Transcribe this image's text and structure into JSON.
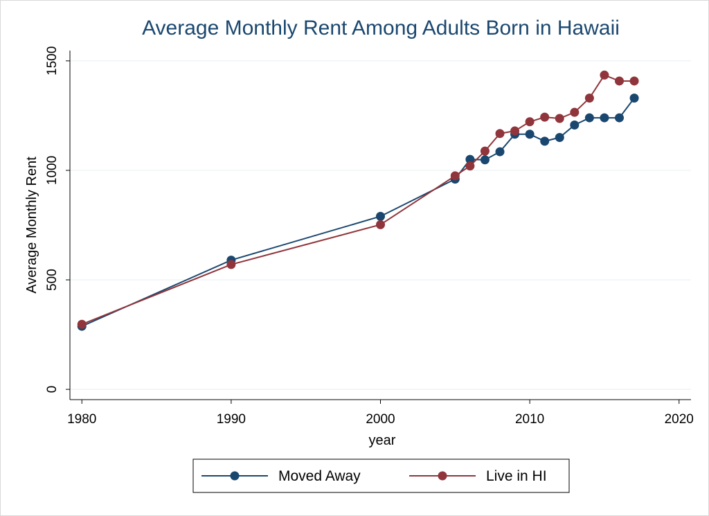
{
  "chart_data": {
    "type": "line",
    "title": "Average Monthly Rent Among Adults Born in Hawaii",
    "x_label": "year",
    "y_label": "Average Monthly Rent",
    "x": [
      1980,
      1990,
      2000,
      2005,
      2006,
      2007,
      2008,
      2009,
      2010,
      2011,
      2012,
      2013,
      2014,
      2015,
      2016,
      2017
    ],
    "series": [
      {
        "name": "Moved Away",
        "color": "#1a476f",
        "values": [
          288,
          590,
          790,
          960,
          1050,
          1048,
          1085,
          1165,
          1165,
          1133,
          1150,
          1207,
          1240,
          1240,
          1240,
          1330
        ]
      },
      {
        "name": "Live in HI",
        "color": "#90353b",
        "values": [
          297,
          570,
          752,
          975,
          1020,
          1088,
          1168,
          1180,
          1222,
          1243,
          1237,
          1265,
          1330,
          1435,
          1408,
          1408
        ]
      }
    ],
    "xlim": [
      1979.2,
      2020.8
    ],
    "xticks": [
      1980,
      1990,
      2000,
      2010,
      2020
    ],
    "ylim": [
      -47,
      1547
    ],
    "yticks": [
      0,
      500,
      1000,
      1500
    ],
    "grid": true,
    "legend": "bottom"
  }
}
